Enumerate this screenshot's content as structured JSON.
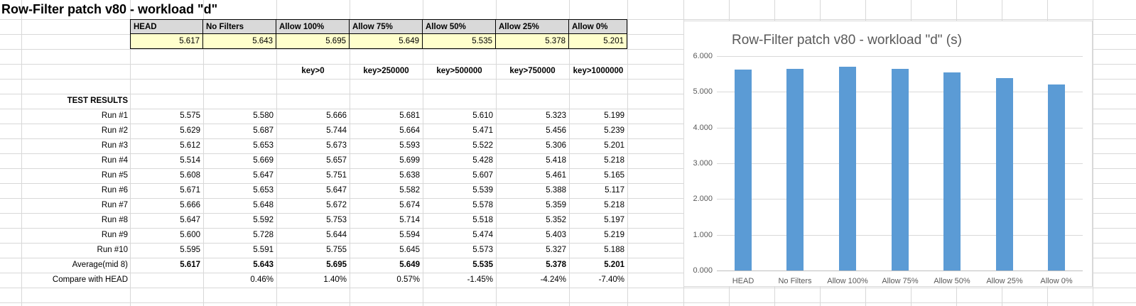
{
  "sheet": {
    "title": "Row-Filter patch v80 - workload \"d\"",
    "columns": [
      "HEAD",
      "No Filters",
      "Allow 100%",
      "Allow 75%",
      "Allow 50%",
      "Allow 25%",
      "Allow 0%"
    ],
    "summary_values": [
      "5.617",
      "5.643",
      "5.695",
      "5.649",
      "5.535",
      "5.378",
      "5.201"
    ],
    "filter_keys": [
      "key>0",
      "key>250000",
      "key>500000",
      "key>750000",
      "key>1000000"
    ],
    "section_label": "TEST RESULTS",
    "runs": [
      {
        "label": "Run #1",
        "values": [
          "5.575",
          "5.580",
          "5.666",
          "5.681",
          "5.610",
          "5.323",
          "5.199"
        ]
      },
      {
        "label": "Run #2",
        "values": [
          "5.629",
          "5.687",
          "5.744",
          "5.664",
          "5.471",
          "5.456",
          "5.239"
        ]
      },
      {
        "label": "Run #3",
        "values": [
          "5.612",
          "5.653",
          "5.673",
          "5.593",
          "5.522",
          "5.306",
          "5.201"
        ]
      },
      {
        "label": "Run #4",
        "values": [
          "5.514",
          "5.669",
          "5.657",
          "5.699",
          "5.428",
          "5.418",
          "5.218"
        ]
      },
      {
        "label": "Run #5",
        "values": [
          "5.608",
          "5.647",
          "5.751",
          "5.638",
          "5.607",
          "5.461",
          "5.165"
        ]
      },
      {
        "label": "Run #6",
        "values": [
          "5.671",
          "5.653",
          "5.647",
          "5.582",
          "5.539",
          "5.388",
          "5.117"
        ]
      },
      {
        "label": "Run #7",
        "values": [
          "5.666",
          "5.648",
          "5.672",
          "5.674",
          "5.578",
          "5.359",
          "5.218"
        ]
      },
      {
        "label": "Run #8",
        "values": [
          "5.647",
          "5.592",
          "5.753",
          "5.714",
          "5.518",
          "5.352",
          "5.197"
        ]
      },
      {
        "label": "Run #9",
        "values": [
          "5.600",
          "5.728",
          "5.644",
          "5.594",
          "5.474",
          "5.403",
          "5.219"
        ]
      },
      {
        "label": "Run #10",
        "values": [
          "5.595",
          "5.591",
          "5.755",
          "5.645",
          "5.573",
          "5.327",
          "5.188"
        ]
      }
    ],
    "average_row": {
      "label": "Average(mid 8)",
      "values": [
        "5.617",
        "5.643",
        "5.695",
        "5.649",
        "5.535",
        "5.378",
        "5.201"
      ]
    },
    "compare_row": {
      "label": "Compare with HEAD",
      "values": [
        "",
        "0.46%",
        "1.40%",
        "0.57%",
        "-1.45%",
        "-4.24%",
        "-7.40%"
      ]
    }
  },
  "chart_data": {
    "type": "bar",
    "title": "Row-Filter patch v80 - workload \"d\" (s)",
    "categories": [
      "HEAD",
      "No Filters",
      "Allow 100%",
      "Allow 75%",
      "Allow 50%",
      "Allow 25%",
      "Allow 0%"
    ],
    "values": [
      5.617,
      5.643,
      5.695,
      5.649,
      5.535,
      5.378,
      5.201
    ],
    "ylim": [
      0,
      6
    ],
    "ytick_labels": [
      "0.000",
      "1.000",
      "2.000",
      "3.000",
      "4.000",
      "5.000",
      "6.000"
    ],
    "xlabel": "",
    "ylabel": "",
    "grid": true,
    "legend": "none",
    "bar_color": "#5b9bd5"
  },
  "colors": {
    "header_fill": "#d9d9d9",
    "summary_fill": "#ffffcc",
    "bar_blue": "#5b9bd5",
    "sheet_gridline": "#d8d8d8",
    "chart_gridline": "#d9d9d9",
    "chart_text": "#595959"
  }
}
